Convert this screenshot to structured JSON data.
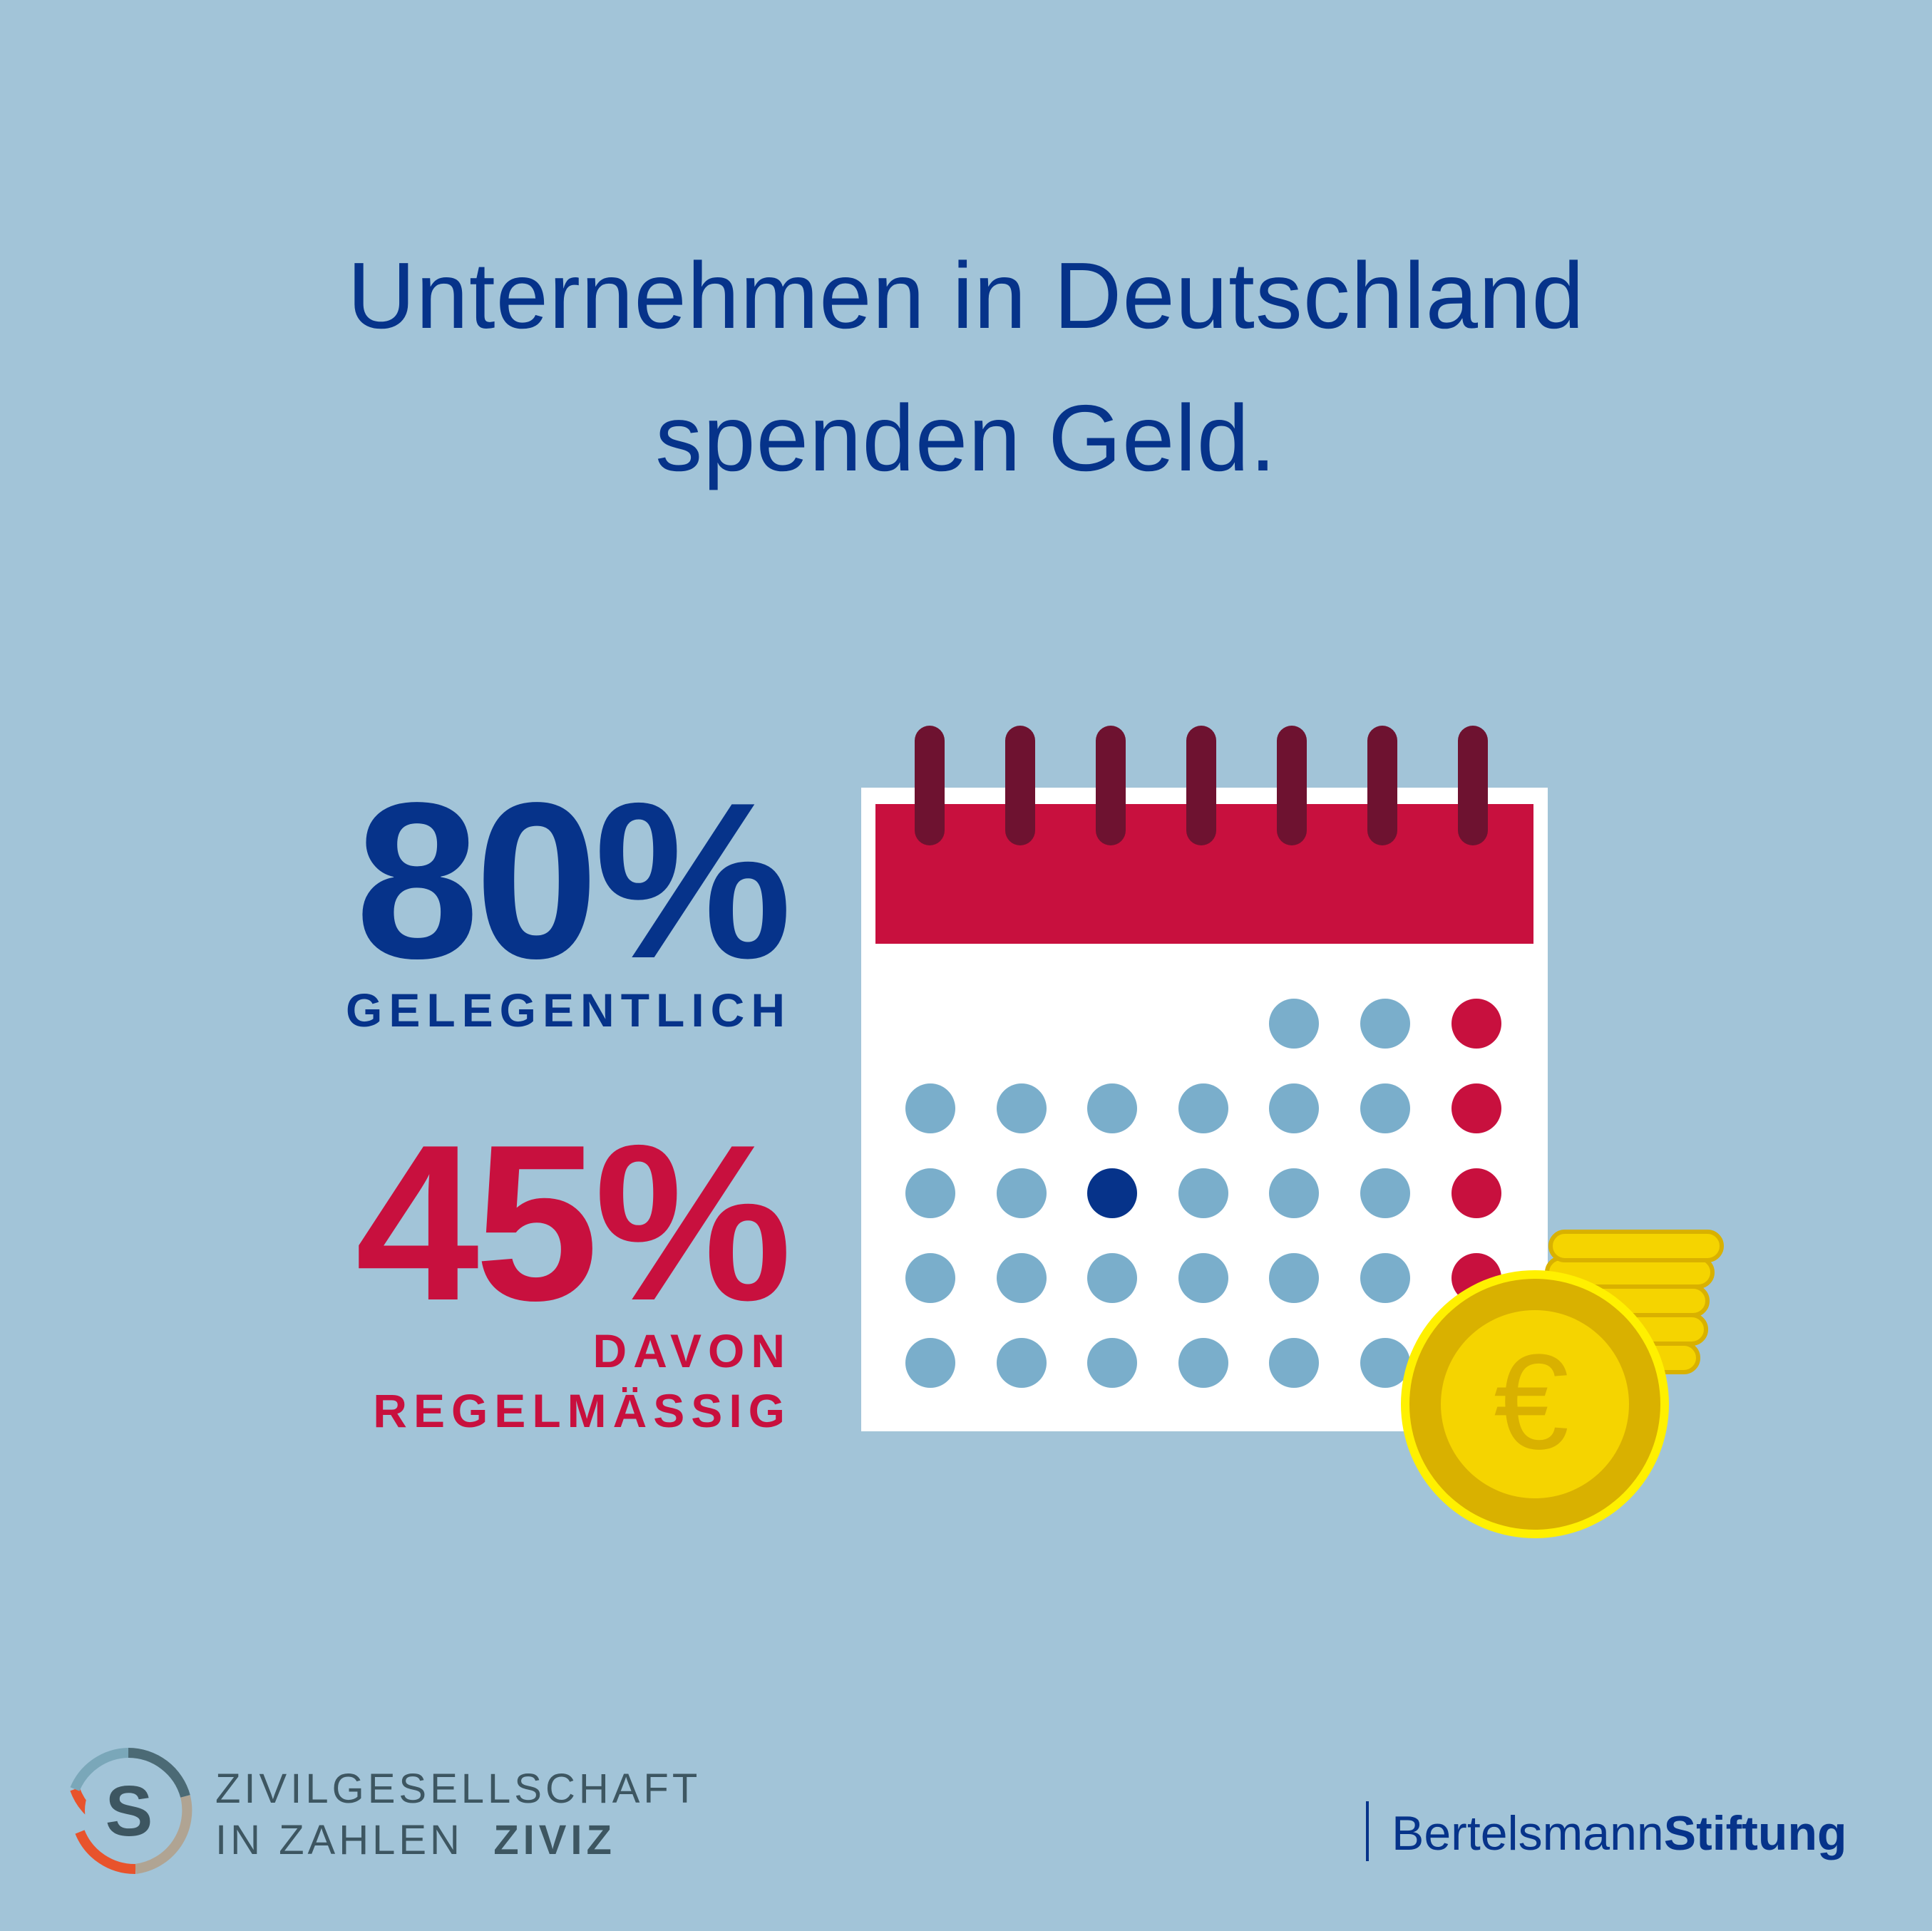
{
  "headline": {
    "line1": "Unternehmen in Deutschland",
    "line2": "spenden Geld."
  },
  "stats": [
    {
      "value": "80%",
      "label": "GELEGENTLICH",
      "color": "#06338a"
    },
    {
      "value": "45%",
      "label_line1": "DAVON",
      "label_line2": "REGELMÄSSIG",
      "color": "#c8103e"
    }
  ],
  "illustration": {
    "calendar_icon": "calendar-icon",
    "coin_icon": "euro-coin-icon",
    "coin_symbol": "€"
  },
  "footer": {
    "ziviz_line1": "ZIVILGESELLSCHAFT",
    "ziviz_line2": "IN ZAHLEN",
    "ziviz_short": "ZIVIZ",
    "ziviz_logo_letter": "S",
    "bertelsmann_regular": "Bertelsmann",
    "bertelsmann_bold": "Stiftung"
  },
  "colors": {
    "background": "#a2c4d8",
    "navy": "#06338a",
    "red": "#c8103e",
    "dot_blue": "#7aaecb",
    "gold": "#f5d400"
  }
}
